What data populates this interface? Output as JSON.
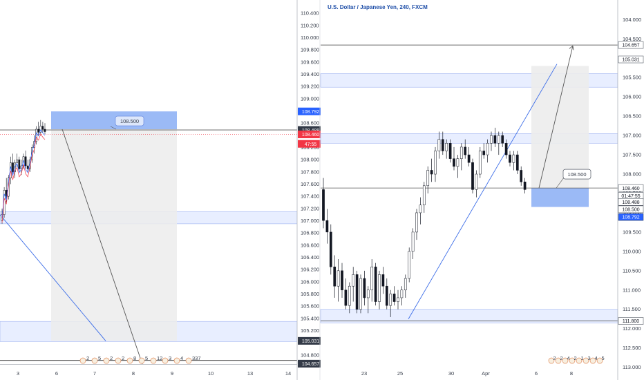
{
  "chart_data": [
    {
      "type": "candlestick",
      "title": "",
      "x_ticks": [
        "3",
        "6",
        "7",
        "8",
        "9",
        "10",
        "13",
        "14"
      ],
      "y_ticks": [
        "110.400",
        "110.200",
        "110.000",
        "109.800",
        "109.600",
        "109.400",
        "109.200",
        "109.000",
        "108.800",
        "108.600",
        "108.400",
        "108.200",
        "108.000",
        "107.800",
        "107.600",
        "107.400",
        "107.200",
        "107.000",
        "106.800",
        "106.600",
        "106.400",
        "106.200",
        "106.000",
        "105.800",
        "105.600",
        "105.400",
        "105.200",
        "105.000",
        "104.800"
      ],
      "ylim": [
        104.65,
        110.55
      ],
      "price_tags": [
        {
          "label": "108.792",
          "value": 108.792,
          "color": "#2962ff"
        },
        {
          "label": "108.488",
          "value": 108.488,
          "color": "#333a47"
        },
        {
          "label": "108.460",
          "value": 108.415,
          "color": "#f23645"
        },
        {
          "label": "47:55",
          "value": 108.26,
          "color": "#f23645"
        },
        {
          "label": "105.031",
          "value": 105.031,
          "color": "#333a47"
        },
        {
          "label": "104.657",
          "value": 104.657,
          "color": "#333a47"
        }
      ],
      "callouts": [
        {
          "label": "108.500",
          "value": 108.5
        }
      ],
      "event_badges": [
        "2",
        "5",
        "2",
        "2",
        "8",
        "5",
        "12",
        "3",
        "4",
        "337"
      ],
      "candles": [
        [
          107.0,
          107.2,
          106.95,
          107.1
        ],
        [
          107.1,
          107.55,
          107.05,
          107.5
        ],
        [
          107.5,
          107.7,
          107.3,
          107.4
        ],
        [
          107.4,
          107.75,
          107.35,
          107.7
        ],
        [
          107.7,
          108.05,
          107.6,
          107.95
        ],
        [
          107.95,
          108.1,
          107.75,
          107.8
        ],
        [
          107.8,
          108.0,
          107.7,
          107.95
        ],
        [
          107.95,
          108.1,
          107.85,
          108.0
        ],
        [
          108.0,
          108.05,
          107.8,
          107.85
        ],
        [
          107.85,
          108.0,
          107.75,
          107.9
        ],
        [
          107.9,
          108.1,
          107.85,
          108.05
        ],
        [
          108.05,
          108.15,
          107.85,
          107.9
        ],
        [
          107.9,
          108.0,
          107.8,
          107.85
        ],
        [
          107.85,
          108.05,
          107.8,
          108.0
        ],
        [
          108.0,
          108.25,
          107.95,
          108.2
        ],
        [
          108.2,
          108.4,
          108.1,
          108.3
        ],
        [
          108.3,
          108.55,
          108.25,
          108.5
        ],
        [
          108.5,
          108.62,
          108.4,
          108.45
        ],
        [
          108.45,
          108.65,
          108.4,
          108.55
        ],
        [
          108.55,
          108.62,
          108.45,
          108.5
        ],
        [
          108.5,
          108.6,
          108.42,
          108.46
        ]
      ]
    },
    {
      "type": "candlestick",
      "title": "U.S. Dollar / Japanese Yen, 240, FXCM",
      "x_ticks": [
        "23",
        "25",
        "30",
        "Apr",
        "6",
        "8"
      ],
      "y_ticks": [
        "104.000",
        "104.500",
        "105.000",
        "105.500",
        "106.000",
        "106.500",
        "107.000",
        "107.500",
        "108.000",
        "108.500",
        "109.000",
        "109.500",
        "110.000",
        "110.500",
        "111.000",
        "111.500",
        "112.000",
        "112.500",
        "113.000"
      ],
      "ylim": [
        103.6,
        113.15
      ],
      "y_inverted": true,
      "price_tags": [
        {
          "label": "104.657",
          "value": 104.657,
          "color": "#333a47"
        },
        {
          "label": "105.031",
          "value": 105.031,
          "color": "#333a47"
        },
        {
          "label": "108.460",
          "value": 108.36,
          "color": "#333a47"
        },
        {
          "label": "01:47:55",
          "value": 108.56,
          "color": "#333a47"
        },
        {
          "label": "108.488",
          "value": 108.72,
          "color": "#333a47"
        },
        {
          "label": "108.500",
          "value": 108.91,
          "color": "#333a47"
        },
        {
          "label": "108.792",
          "value": 109.11,
          "color": "#2962ff"
        },
        {
          "label": "111.800",
          "value": 111.8,
          "color": "#333a47"
        }
      ],
      "callouts": [
        {
          "label": "108.500",
          "value": 108.0
        }
      ],
      "event_badges": [
        "2",
        "2",
        "4",
        "2",
        "1",
        "3",
        "4",
        "5"
      ],
      "candles": [
        [
          108.4,
          109.4,
          108.1,
          109.2
        ],
        [
          109.2,
          109.8,
          108.9,
          109.5
        ],
        [
          109.5,
          110.6,
          109.3,
          110.4
        ],
        [
          110.4,
          111.2,
          110.1,
          110.9
        ],
        [
          110.9,
          111.3,
          110.2,
          110.5
        ],
        [
          110.5,
          111.2,
          110.3,
          111.0
        ],
        [
          111.0,
          111.5,
          110.7,
          111.4
        ],
        [
          111.4,
          111.6,
          110.8,
          110.9
        ],
        [
          110.9,
          111.3,
          110.4,
          110.6
        ],
        [
          110.6,
          111.6,
          110.5,
          111.5
        ],
        [
          111.5,
          111.6,
          110.6,
          110.7
        ],
        [
          110.7,
          111.4,
          110.5,
          111.2
        ],
        [
          111.2,
          111.6,
          110.9,
          111.0
        ],
        [
          111.0,
          111.3,
          110.2,
          110.4
        ],
        [
          110.4,
          111.4,
          110.3,
          111.3
        ],
        [
          111.3,
          111.5,
          110.5,
          110.6
        ],
        [
          110.6,
          111.1,
          110.4,
          110.9
        ],
        [
          110.9,
          111.5,
          110.7,
          111.4
        ],
        [
          111.4,
          111.7,
          111.0,
          111.1
        ],
        [
          111.1,
          111.4,
          110.9,
          111.3
        ],
        [
          111.3,
          111.5,
          111.0,
          111.2
        ],
        [
          111.2,
          111.4,
          110.9,
          111.0
        ],
        [
          111.0,
          111.2,
          110.6,
          110.7
        ],
        [
          110.7,
          110.8,
          109.9,
          110.0
        ],
        [
          110.0,
          110.2,
          109.4,
          109.5
        ],
        [
          109.5,
          109.7,
          108.9,
          109.0
        ],
        [
          109.0,
          109.3,
          108.6,
          108.8
        ],
        [
          108.8,
          109.0,
          108.2,
          108.3
        ],
        [
          108.3,
          108.5,
          107.8,
          107.9
        ],
        [
          107.9,
          108.2,
          107.6,
          108.0
        ],
        [
          108.0,
          108.2,
          107.3,
          107.4
        ],
        [
          107.4,
          107.6,
          106.9,
          107.1
        ],
        [
          107.1,
          107.5,
          106.9,
          107.4
        ],
        [
          107.4,
          107.6,
          107.1,
          107.2
        ],
        [
          107.2,
          107.7,
          107.1,
          107.6
        ],
        [
          107.6,
          107.9,
          107.3,
          107.8
        ],
        [
          107.8,
          108.1,
          107.5,
          107.6
        ],
        [
          107.6,
          107.9,
          107.2,
          107.3
        ],
        [
          107.3,
          107.6,
          107.1,
          107.5
        ],
        [
          107.5,
          107.8,
          107.3,
          107.7
        ],
        [
          107.7,
          108.5,
          107.6,
          108.4
        ],
        [
          108.4,
          108.6,
          107.9,
          108.0
        ],
        [
          108.0,
          108.1,
          107.3,
          107.4
        ],
        [
          107.4,
          107.6,
          107.2,
          107.5
        ],
        [
          107.5,
          107.7,
          107.1,
          107.2
        ],
        [
          107.2,
          107.4,
          106.9,
          107.0
        ],
        [
          107.0,
          107.3,
          106.8,
          107.2
        ],
        [
          107.2,
          107.5,
          106.9,
          107.0
        ],
        [
          107.0,
          107.3,
          106.9,
          107.2
        ],
        [
          107.2,
          107.6,
          107.1,
          107.5
        ],
        [
          107.5,
          107.8,
          107.4,
          107.7
        ],
        [
          107.7,
          107.9,
          107.4,
          107.5
        ],
        [
          107.5,
          108.0,
          107.4,
          107.9
        ],
        [
          107.9,
          108.3,
          107.8,
          108.2
        ],
        [
          108.2,
          108.5,
          108.1,
          108.4
        ]
      ]
    }
  ]
}
